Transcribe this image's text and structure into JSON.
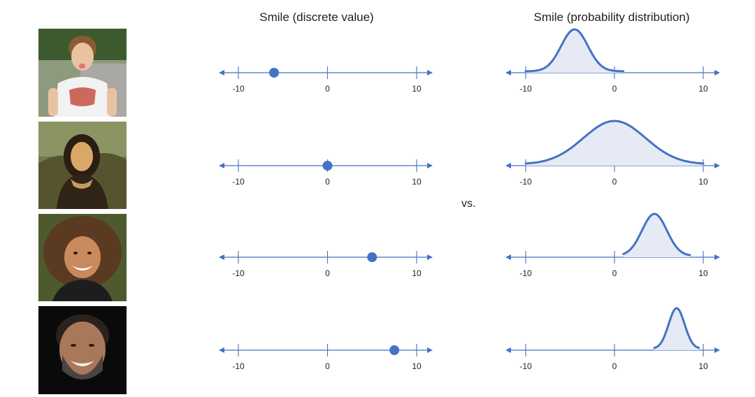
{
  "titles": {
    "discrete": "Smile (discrete value)",
    "distribution": "Smile (probability distribution)"
  },
  "vs_label": "vs.",
  "colors": {
    "axis": "#4472C4",
    "dot": "#4472C4",
    "curve": "#4472C4",
    "fill": "#E6EAF5"
  },
  "rows": [
    {
      "photo_name": "boy-sticking-out-tongue-photo",
      "discrete_value": -6,
      "distribution": {
        "mean": -4.5,
        "sd": 1.5,
        "range": [
          -10,
          1
        ]
      }
    },
    {
      "photo_name": "mona-lisa-photo",
      "discrete_value": 0,
      "distribution": {
        "mean": 0,
        "sd": 3.5,
        "range": [
          -10,
          10
        ]
      }
    },
    {
      "photo_name": "smiling-girl-photo",
      "discrete_value": 5,
      "distribution": {
        "mean": 4.5,
        "sd": 1.4,
        "range": [
          1,
          8.5
        ]
      }
    },
    {
      "photo_name": "laughing-man-photo",
      "discrete_value": 7.5,
      "distribution": {
        "mean": 7,
        "sd": 0.9,
        "range": [
          4.5,
          9.5
        ]
      }
    }
  ],
  "chart_data": {
    "type": "scatter",
    "title": "",
    "axis_ticks": [
      "-10",
      "0",
      "10"
    ],
    "xlim": [
      -10,
      10
    ],
    "panels": [
      {
        "name": "Smile (discrete value)",
        "points": [
          {
            "row": 1,
            "x": -6
          },
          {
            "row": 2,
            "x": 0
          },
          {
            "row": 3,
            "x": 5
          },
          {
            "row": 4,
            "x": 7.5
          }
        ]
      },
      {
        "name": "Smile (probability distribution)",
        "curves": [
          {
            "row": 1,
            "mean": -4.5,
            "sd": 1.5,
            "support": [
              -10,
              1
            ]
          },
          {
            "row": 2,
            "mean": 0,
            "sd": 3.5,
            "support": [
              -10,
              10
            ]
          },
          {
            "row": 3,
            "mean": 4.5,
            "sd": 1.4,
            "support": [
              1,
              8.5
            ]
          },
          {
            "row": 4,
            "mean": 7,
            "sd": 0.9,
            "support": [
              4.5,
              9.5
            ]
          }
        ]
      }
    ]
  }
}
